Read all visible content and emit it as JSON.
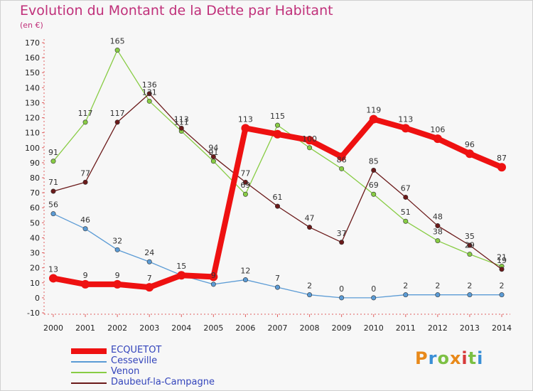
{
  "header": {
    "title": "Evolution du Montant de la Dette par Habitant",
    "subtitle": "(en €)"
  },
  "logo": {
    "text": "Proxiti",
    "colors": [
      "#e8891a",
      "#3a8fd6",
      "#7cc044",
      "#e8891a",
      "#d63a3a",
      "#7cc044",
      "#3a8fd6"
    ]
  },
  "chart_data": {
    "type": "line",
    "title": "Evolution du Montant de la Dette par Habitant",
    "subtitle": "(en €)",
    "x": [
      "2000",
      "2001",
      "2002",
      "2003",
      "2004",
      "2005",
      "2006",
      "2007",
      "2008",
      "2009",
      "2010",
      "2011",
      "2012",
      "2013",
      "2014"
    ],
    "ylim": [
      -10,
      170
    ],
    "yticks": [
      -10,
      0,
      10,
      20,
      30,
      40,
      50,
      60,
      70,
      80,
      90,
      100,
      110,
      120,
      130,
      140,
      150,
      160,
      170
    ],
    "grid": false,
    "legend_position": "bottom-left",
    "series": [
      {
        "name": "ECQUETOT",
        "color": "#ee1111",
        "bold": true,
        "values": [
          13,
          9,
          9,
          7,
          15,
          14,
          113,
          109,
          105,
          94,
          119,
          113,
          106,
          96,
          87
        ],
        "labels": [
          "13",
          "9",
          "9",
          "7",
          "",
          "",
          "113",
          "",
          "",
          "",
          "119",
          "113",
          "106",
          "96",
          "87"
        ]
      },
      {
        "name": "Cesseville",
        "color": "#5b9bd5",
        "bold": false,
        "values": [
          56,
          46,
          32,
          24,
          15,
          9,
          12,
          7,
          2,
          0,
          0,
          2,
          2,
          2,
          2
        ],
        "labels": [
          "56",
          "46",
          "32",
          "24",
          "15",
          "9",
          "12",
          "7",
          "2",
          "0",
          "0",
          "2",
          "2",
          "2",
          "2"
        ]
      },
      {
        "name": "Venon",
        "color": "#88cc44",
        "bold": false,
        "values": [
          91,
          117,
          165,
          131,
          111,
          91,
          69,
          115,
          100,
          86,
          69,
          51,
          38,
          29,
          21
        ],
        "labels": [
          "91",
          "117",
          "165",
          "131",
          "111",
          "91",
          "69",
          "115",
          "100",
          "86",
          "69",
          "51",
          "38",
          "29",
          "21"
        ]
      },
      {
        "name": "Daubeuf-la-Campagne",
        "color": "#6b1a1a",
        "bold": false,
        "values": [
          71,
          77,
          117,
          136,
          113,
          94,
          77,
          61,
          47,
          37,
          85,
          67,
          48,
          35,
          19
        ],
        "labels": [
          "71",
          "77",
          "117",
          "136",
          "113",
          "94",
          "77",
          "61",
          "47",
          "37",
          "85",
          "67",
          "48",
          "35",
          "19"
        ]
      }
    ]
  }
}
